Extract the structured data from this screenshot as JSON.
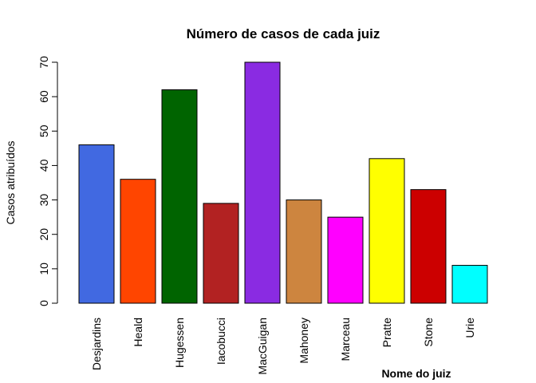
{
  "chart_data": {
    "type": "bar",
    "title": "Número de casos de cada juiz",
    "xlabel": "Nome do juiz",
    "ylabel": "Casos atribuídos",
    "categories": [
      "Desjardins",
      "Heald",
      "Hugessen",
      "Iacobucci",
      "MacGuigan",
      "Mahoney",
      "Marceau",
      "Pratte",
      "Stone",
      "Urie"
    ],
    "values": [
      46,
      36,
      62,
      29,
      70,
      30,
      25,
      42,
      33,
      11
    ],
    "colors": [
      "#4169E1",
      "#FF4500",
      "#006400",
      "#B22222",
      "#8A2BE2",
      "#CD853F",
      "#FF00FF",
      "#FFFF00",
      "#CC0000",
      "#00FFFF"
    ],
    "yticks": [
      0,
      10,
      20,
      30,
      40,
      50,
      60,
      70
    ],
    "ylim": [
      0,
      70
    ],
    "grid": false,
    "legend": "none"
  }
}
